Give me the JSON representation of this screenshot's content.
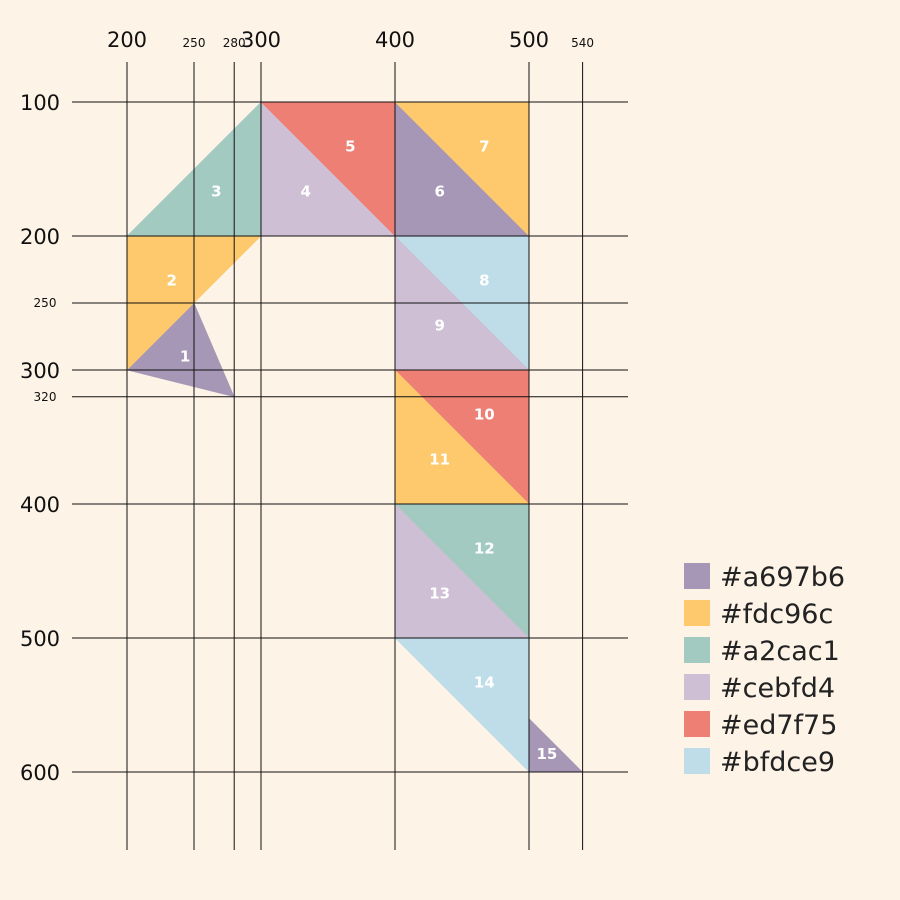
{
  "x_ticks": [
    {
      "value": 200,
      "label": "200",
      "size": "big"
    },
    {
      "value": 250,
      "label": "250",
      "size": "small"
    },
    {
      "value": 280,
      "label": "280",
      "size": "small"
    },
    {
      "value": 300,
      "label": "300",
      "size": "big"
    },
    {
      "value": 400,
      "label": "400",
      "size": "big"
    },
    {
      "value": 500,
      "label": "500",
      "size": "big"
    },
    {
      "value": 540,
      "label": "540",
      "size": "small"
    }
  ],
  "y_ticks": [
    {
      "value": 100,
      "label": "100",
      "size": "big"
    },
    {
      "value": 200,
      "label": "200",
      "size": "big"
    },
    {
      "value": 250,
      "label": "250",
      "size": "small"
    },
    {
      "value": 300,
      "label": "300",
      "size": "big"
    },
    {
      "value": 320,
      "label": "320",
      "size": "small"
    },
    {
      "value": 400,
      "label": "400",
      "size": "big"
    },
    {
      "value": 500,
      "label": "500",
      "size": "big"
    },
    {
      "value": 600,
      "label": "600",
      "size": "big"
    }
  ],
  "triangles": [
    {
      "label": "1",
      "color": "#a697b6",
      "points": [
        [
          250,
          250
        ],
        [
          200,
          300
        ],
        [
          280,
          320
        ]
      ]
    },
    {
      "label": "2",
      "color": "#fdc96c",
      "points": [
        [
          200,
          200
        ],
        [
          200,
          300
        ],
        [
          300,
          200
        ]
      ]
    },
    {
      "label": "3",
      "color": "#a2cac1",
      "points": [
        [
          200,
          200
        ],
        [
          300,
          100
        ],
        [
          300,
          200
        ]
      ]
    },
    {
      "label": "4",
      "color": "#cebfd4",
      "points": [
        [
          300,
          100
        ],
        [
          300,
          200
        ],
        [
          400,
          200
        ]
      ]
    },
    {
      "label": "5",
      "color": "#ed7f75",
      "points": [
        [
          300,
          100
        ],
        [
          400,
          100
        ],
        [
          400,
          200
        ]
      ]
    },
    {
      "label": "6",
      "color": "#a697b6",
      "points": [
        [
          400,
          100
        ],
        [
          400,
          200
        ],
        [
          500,
          200
        ]
      ]
    },
    {
      "label": "7",
      "color": "#fdc96c",
      "points": [
        [
          400,
          100
        ],
        [
          500,
          100
        ],
        [
          500,
          200
        ]
      ]
    },
    {
      "label": "8",
      "color": "#bfdce9",
      "points": [
        [
          400,
          200
        ],
        [
          500,
          200
        ],
        [
          500,
          300
        ]
      ]
    },
    {
      "label": "9",
      "color": "#cebfd4",
      "points": [
        [
          400,
          200
        ],
        [
          400,
          300
        ],
        [
          500,
          300
        ]
      ]
    },
    {
      "label": "10",
      "color": "#ed7f75",
      "points": [
        [
          400,
          300
        ],
        [
          500,
          300
        ],
        [
          500,
          400
        ]
      ]
    },
    {
      "label": "11",
      "color": "#fdc96c",
      "points": [
        [
          400,
          300
        ],
        [
          400,
          400
        ],
        [
          500,
          400
        ]
      ]
    },
    {
      "label": "12",
      "color": "#a2cac1",
      "points": [
        [
          400,
          400
        ],
        [
          500,
          400
        ],
        [
          500,
          500
        ]
      ]
    },
    {
      "label": "13",
      "color": "#cebfd4",
      "points": [
        [
          400,
          400
        ],
        [
          400,
          500
        ],
        [
          500,
          500
        ]
      ]
    },
    {
      "label": "14",
      "color": "#bfdce9",
      "points": [
        [
          400,
          500
        ],
        [
          500,
          500
        ],
        [
          500,
          600
        ]
      ]
    },
    {
      "label": "15",
      "color": "#a697b6",
      "points": [
        [
          500,
          560
        ],
        [
          500,
          600
        ],
        [
          540,
          600
        ]
      ]
    }
  ],
  "legend": [
    {
      "color": "#a697b6",
      "label": "#a697b6"
    },
    {
      "color": "#fdc96c",
      "label": "#fdc96c"
    },
    {
      "color": "#a2cac1",
      "label": "#a2cac1"
    },
    {
      "color": "#cebfd4",
      "label": "#cebfd4"
    },
    {
      "color": "#ed7f75",
      "label": "#ed7f75"
    },
    {
      "color": "#bfdce9",
      "label": "#bfdce9"
    }
  ]
}
